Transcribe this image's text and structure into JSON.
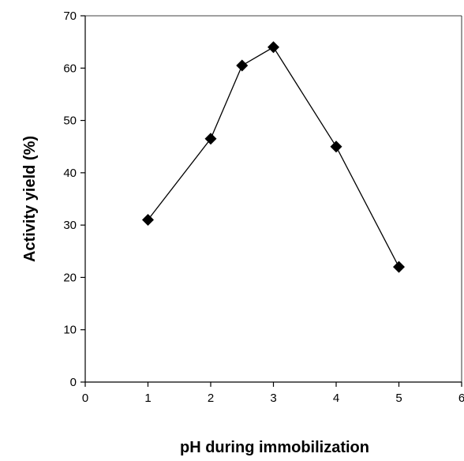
{
  "chart_data": {
    "type": "line",
    "xlabel": "pH during immobilization",
    "ylabel": "Activity yield (%)",
    "xlim": [
      0,
      6
    ],
    "ylim": [
      0,
      70
    ],
    "x_ticks": [
      0,
      1,
      2,
      3,
      4,
      5,
      6
    ],
    "y_ticks": [
      0,
      10,
      20,
      30,
      40,
      50,
      60,
      70
    ],
    "grid": false,
    "marker": "diamond",
    "series": [
      {
        "x": [
          1,
          2,
          2.5,
          3,
          4,
          5
        ],
        "y": [
          31,
          46.5,
          60.5,
          64,
          45,
          22
        ],
        "color": "#000000"
      }
    ]
  }
}
